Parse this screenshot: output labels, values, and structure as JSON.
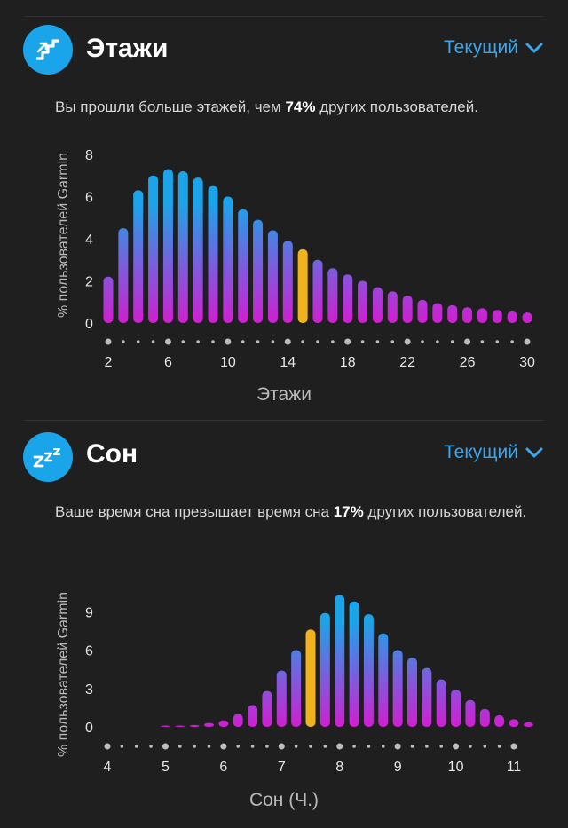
{
  "sections": [
    {
      "title": "Этажи",
      "icon": "stairs-icon",
      "dropdown_label": "Текущий",
      "desc_prefix": "Вы прошли больше этажей, чем ",
      "desc_percent": "74%",
      "desc_suffix": " других пользователей.",
      "chart_data": {
        "type": "bar",
        "ylabel": "% пользователей Garmin",
        "xlabel": "Этажи",
        "yticks": [
          "8",
          "6",
          "4",
          "2",
          "0"
        ],
        "ylim": [
          0,
          8
        ],
        "xticks": [
          "2",
          "6",
          "10",
          "14",
          "18",
          "22",
          "26",
          "30"
        ],
        "x": [
          2,
          3,
          4,
          5,
          6,
          7,
          8,
          9,
          10,
          11,
          12,
          13,
          14,
          15,
          16,
          17,
          18,
          19,
          20,
          21,
          22,
          23,
          24,
          25,
          26,
          27,
          28,
          29,
          30
        ],
        "values": [
          2.2,
          4.5,
          6.3,
          7.0,
          7.3,
          7.2,
          6.9,
          6.5,
          6.0,
          5.4,
          4.9,
          4.4,
          3.9,
          3.5,
          3.0,
          2.6,
          2.3,
          2.0,
          1.7,
          1.5,
          1.3,
          1.1,
          0.95,
          0.85,
          0.75,
          0.7,
          0.62,
          0.55,
          0.5
        ],
        "highlight_x": 15,
        "colors": {
          "top": "#1ba4ea",
          "bottom": "#d01fd1",
          "highlight": "#f2b21c"
        }
      }
    },
    {
      "title": "Сон",
      "icon": "zzz-sleep-icon",
      "dropdown_label": "Текущий",
      "desc_prefix": "Ваше время сна превышает время сна ",
      "desc_percent": "17%",
      "desc_suffix": " других пользователей.",
      "chart_data": {
        "type": "bar",
        "ylabel": "% пользователей Garmin",
        "xlabel": "Сон (Ч.)",
        "yticks": [
          "9",
          "6",
          "3",
          "0"
        ],
        "ylim": [
          0,
          12
        ],
        "xticks": [
          "4",
          "5",
          "6",
          "7",
          "8",
          "9",
          "10",
          "11"
        ],
        "x": [
          5.0,
          5.25,
          5.5,
          5.75,
          6.0,
          6.25,
          6.5,
          6.75,
          7.0,
          7.25,
          7.5,
          7.75,
          8.0,
          8.25,
          8.5,
          8.75,
          9.0,
          9.25,
          9.5,
          9.75,
          10.0,
          10.25,
          10.5,
          10.75,
          11.0,
          11.25
        ],
        "values": [
          0.08,
          0.1,
          0.15,
          0.3,
          0.5,
          1.0,
          1.7,
          2.8,
          4.4,
          6.0,
          7.6,
          8.9,
          10.3,
          9.8,
          8.8,
          7.3,
          6.0,
          5.4,
          4.6,
          3.7,
          2.9,
          2.1,
          1.4,
          0.9,
          0.6,
          0.35
        ],
        "highlight_x": 7.5,
        "colors": {
          "top": "#1ba4ea",
          "bottom": "#d01fd1",
          "highlight": "#f2b21c"
        }
      }
    }
  ]
}
